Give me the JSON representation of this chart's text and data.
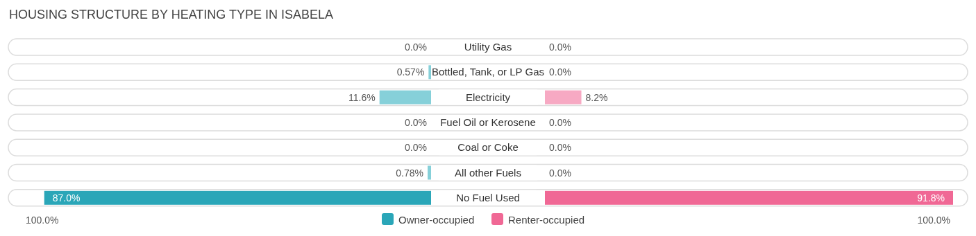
{
  "chart_data": [
    {
      "type": "bar",
      "orientation": "horizontal",
      "title": "HOUSING STRUCTURE BY HEATING TYPE IN ISABELA",
      "categories": [
        "Utility Gas",
        "Bottled, Tank, or LP Gas",
        "Electricity",
        "Fuel Oil or Kerosene",
        "Coal or Coke",
        "All other Fuels",
        "No Fuel Used"
      ],
      "series": [
        {
          "name": "Owner-occupied",
          "color": "#2aa6b8",
          "colors": [
            "#86d0d9",
            "#86d0d9",
            "#86d0d9",
            "#86d0d9",
            "#86d0d9",
            "#86d0d9",
            "#2aa6b8"
          ],
          "values": [
            0,
            0.57,
            11.6,
            0,
            0,
            0.78,
            87.0
          ],
          "value_labels": [
            "0.0%",
            "0.57%",
            "11.6%",
            "0.0%",
            "0.0%",
            "0.78%",
            "87.0%"
          ]
        }
      ],
      "annotations": [
        "100.0%"
      ],
      "legend": "bottom"
    },
    {
      "type": "bar",
      "orientation": "horizontal",
      "categories": [
        null,
        null,
        null,
        null,
        null,
        null,
        null
      ],
      "series": [
        {
          "name": "Renter-occupied",
          "color": "#f06895",
          "colors": [
            "#f7a9c3",
            "#f7a9c3",
            "#f7a9c3",
            "#f7a9c3",
            "#f7a9c3",
            "#f7a9c3",
            "#f06895"
          ],
          "values": [
            0,
            0,
            8.2,
            0,
            0,
            0,
            91.8
          ],
          "value_labels": [
            "0.0%",
            "0.0%",
            "8.2%",
            "0.0%",
            "0.0%",
            "0.0%",
            "91.8%"
          ]
        }
      ],
      "annotations": [
        "100.0%"
      ],
      "legend": "bottom"
    }
  ]
}
